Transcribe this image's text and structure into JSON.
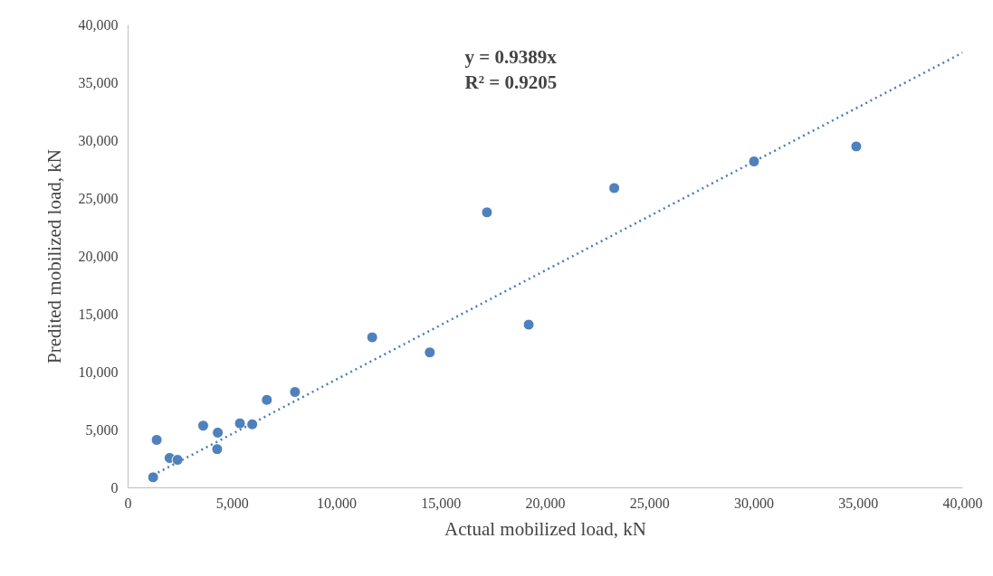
{
  "chart_data": {
    "type": "scatter",
    "xlabel": "Actual mobilized load, kN",
    "ylabel": "Predited mobilized load, kN",
    "annotations": [
      "y = 0.9389x",
      "R² = 0.9205"
    ],
    "xlim": [
      0,
      40000
    ],
    "xticks": [
      {
        "value": 0,
        "label": "0"
      },
      {
        "value": 5000,
        "label": "5,000"
      },
      {
        "value": 10000,
        "label": "10,000"
      },
      {
        "value": 15000,
        "label": "15,000"
      },
      {
        "value": 20000,
        "label": "20,000"
      },
      {
        "value": 25000,
        "label": "25,000"
      },
      {
        "value": 30000,
        "label": "30,000"
      },
      {
        "value": 35000,
        "label": "35,000"
      },
      {
        "value": 40000,
        "label": "40,000"
      }
    ],
    "ylim": [
      0,
      40000
    ],
    "yticks": [
      {
        "value": 0,
        "label": "0"
      },
      {
        "value": 5000,
        "label": "5,000"
      },
      {
        "value": 10000,
        "label": "10,000"
      },
      {
        "value": 15000,
        "label": "15,000"
      },
      {
        "value": 20000,
        "label": "20,000"
      },
      {
        "value": 25000,
        "label": "25,000"
      },
      {
        "value": 30000,
        "label": "30,000"
      },
      {
        "value": 35000,
        "label": "35,000"
      },
      {
        "value": 40000,
        "label": "40,000"
      }
    ],
    "grid": false,
    "marker": "circle",
    "series": [
      {
        "color": "#4f81bd",
        "x": [
          1200,
          1370,
          1990,
          2370,
          3600,
          4270,
          4300,
          5360,
          5950,
          6650,
          8000,
          11700,
          14460,
          17200,
          19200,
          23300,
          30000,
          34900
        ],
        "values": [
          910,
          4140,
          2580,
          2420,
          5370,
          3340,
          4770,
          5570,
          5490,
          7600,
          8280,
          13000,
          11700,
          23800,
          14100,
          25900,
          28200,
          29500
        ]
      },
      {
        "type": "line",
        "line_style": "dotted",
        "marker": "none",
        "color": "#4a7ebb",
        "x": [
          1200,
          40000
        ],
        "values": [
          1100,
          37600
        ]
      }
    ]
  }
}
